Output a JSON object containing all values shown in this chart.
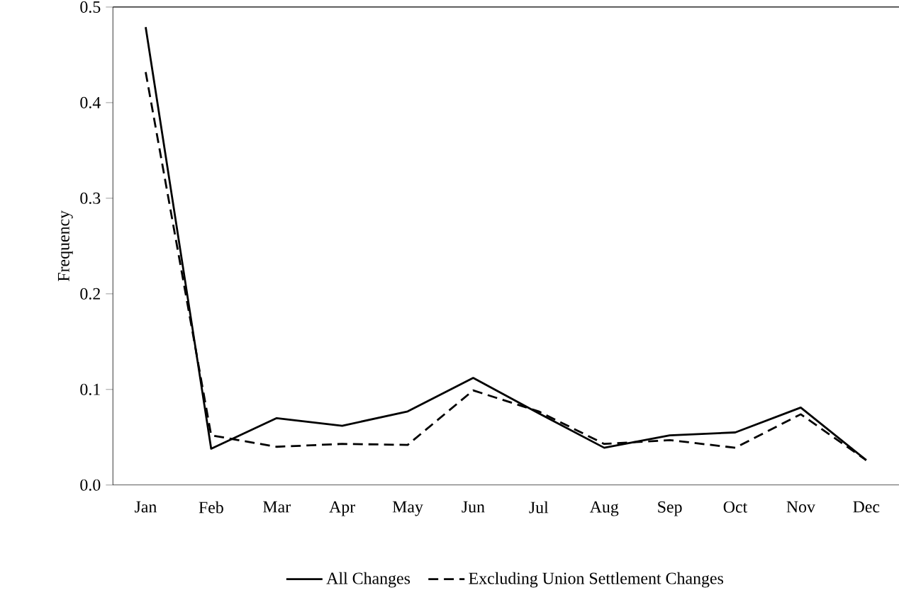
{
  "chart_data": {
    "type": "line",
    "ylabel": "Frequency",
    "categories": [
      "Jan",
      "Feb",
      "Mar",
      "Apr",
      "May",
      "Jun",
      "Jul",
      "Aug",
      "Sep",
      "Oct",
      "Nov",
      "Dec"
    ],
    "series": [
      {
        "name": "All Changes",
        "color": "#000000",
        "line_style": "solid",
        "values": [
          0.479,
          0.038,
          0.07,
          0.062,
          0.077,
          0.112,
          0.075,
          0.039,
          0.052,
          0.055,
          0.081,
          0.026
        ]
      },
      {
        "name": "Excluding Union Settlement Changes",
        "color": "#000000",
        "line_style": "dashed",
        "values": [
          0.432,
          0.052,
          0.04,
          0.043,
          0.042,
          0.099,
          0.077,
          0.043,
          0.047,
          0.039,
          0.074,
          0.026
        ]
      }
    ],
    "ylim": [
      0,
      0.5
    ],
    "yticks": [
      {
        "value": 0,
        "label": "0.0"
      },
      {
        "value": 0.1,
        "label": "0.1"
      },
      {
        "value": 0.2,
        "label": "0.2"
      },
      {
        "value": 0.3,
        "label": "0.3"
      },
      {
        "value": 0.4,
        "label": "0.4"
      },
      {
        "value": 0.5,
        "label": "0.5"
      }
    ],
    "legend": "bottom",
    "grid": false,
    "marker": "none"
  }
}
